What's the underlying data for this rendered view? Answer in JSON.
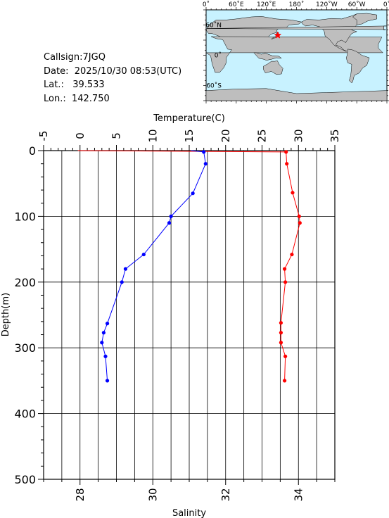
{
  "meta": {
    "callsign": "Callsign:7JGQ",
    "date": "Date:  2025/10/30 08:53(UTC)",
    "lat": "Lat.:   39.533",
    "lon": "Lon.:  142.750"
  },
  "map": {
    "top_labels": [
      "0˚",
      "60˚E",
      "120˚E",
      "180˚",
      "120˚W",
      "60˚W",
      "0˚"
    ],
    "lat_labels": [
      "60˚N",
      "0˚",
      "60˚S"
    ],
    "station": {
      "lon": 142.75,
      "lat": 39.533
    },
    "ocean_color": "#c8f2ff",
    "land_color": "#bebebe",
    "marker_color": "#ff0000"
  },
  "chart_data": {
    "type": "line",
    "ylabel": "Depth(m)",
    "y_range": [
      0,
      500
    ],
    "y_ticks": [
      0,
      100,
      200,
      300,
      400,
      500
    ],
    "top_axis": {
      "label": "Temperature(C)",
      "range": [
        -5,
        35
      ],
      "ticks": [
        -5,
        0,
        5,
        10,
        15,
        20,
        25,
        30,
        35
      ]
    },
    "bottom_axis": {
      "label": "Salinity",
      "range": [
        27,
        35
      ],
      "ticks": [
        28,
        30,
        32,
        34
      ]
    },
    "grid": true,
    "series": [
      {
        "axis": "top",
        "color": "#ff0000",
        "points": [
          {
            "x": 28.3,
            "y": 2
          },
          {
            "x": 28.4,
            "y": 20
          },
          {
            "x": 29.2,
            "y": 64
          },
          {
            "x": 30.1,
            "y": 100
          },
          {
            "x": 30.2,
            "y": 110
          },
          {
            "x": 29.1,
            "y": 158
          },
          {
            "x": 28.1,
            "y": 180
          },
          {
            "x": 28.2,
            "y": 200
          },
          {
            "x": 27.6,
            "y": 262
          },
          {
            "x": 27.6,
            "y": 277
          },
          {
            "x": 27.6,
            "y": 292
          },
          {
            "x": 28.2,
            "y": 313
          },
          {
            "x": 28.1,
            "y": 350
          }
        ],
        "surface_spike": [
          {
            "x": -0.3,
            "y": 0
          },
          {
            "x": 28.3,
            "y": 2
          }
        ]
      },
      {
        "axis": "bottom",
        "color": "#0000ff",
        "points": [
          {
            "x": 31.4,
            "y": 2
          },
          {
            "x": 31.45,
            "y": 20
          },
          {
            "x": 31.1,
            "y": 65
          },
          {
            "x": 30.5,
            "y": 100
          },
          {
            "x": 30.45,
            "y": 110
          },
          {
            "x": 29.75,
            "y": 158
          },
          {
            "x": 29.25,
            "y": 180
          },
          {
            "x": 29.15,
            "y": 200
          },
          {
            "x": 28.75,
            "y": 263
          },
          {
            "x": 28.65,
            "y": 277
          },
          {
            "x": 28.6,
            "y": 292
          },
          {
            "x": 28.7,
            "y": 313
          },
          {
            "x": 28.75,
            "y": 350
          }
        ],
        "surface_spike": [
          {
            "x": 31.05,
            "y": 0
          },
          {
            "x": 31.4,
            "y": 2
          }
        ]
      }
    ]
  }
}
